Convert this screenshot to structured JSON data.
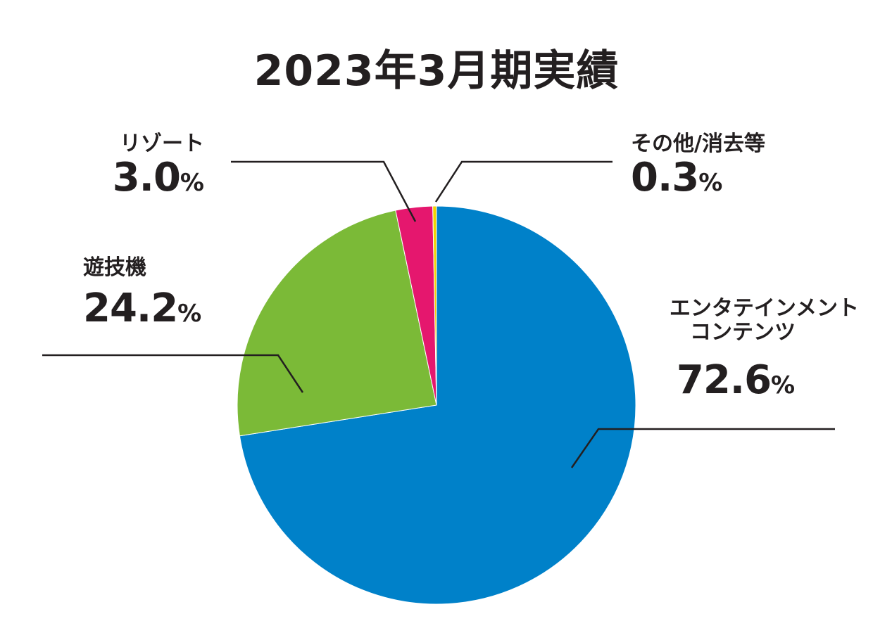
{
  "chart_data": {
    "type": "pie",
    "title": "2023年3月期実績",
    "unit": "%",
    "slices": [
      {
        "key": "entertainment",
        "name_lines": [
          "エンタテインメント",
          "コンテンツ"
        ],
        "value": 72.6,
        "display": "72.6",
        "color": "#0081c9"
      },
      {
        "key": "amusement",
        "name_lines": [
          "遊技機"
        ],
        "value": 24.2,
        "display": "24.2",
        "color": "#7bba37"
      },
      {
        "key": "resort",
        "name_lines": [
          "リゾート"
        ],
        "value": 3.0,
        "display": "3.0",
        "color": "#e5176e"
      },
      {
        "key": "other",
        "name_lines": [
          "その他/消去等"
        ],
        "value": 0.3,
        "display": "0.3",
        "color": "#f2d300"
      }
    ],
    "start": "12 o'clock",
    "direction": "clockwise",
    "legend": "none"
  }
}
